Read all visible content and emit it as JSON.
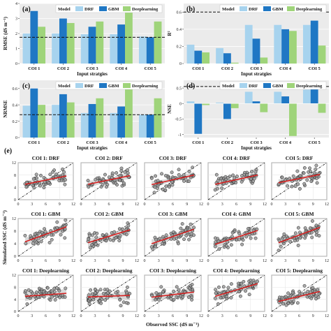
{
  "figure": {
    "chart_data": [
      {
        "panel": "(a)",
        "type": "bar",
        "categories": [
          "COI 1",
          "COI 2",
          "COI 3",
          "COI 4",
          "COI 5"
        ],
        "xlabel": "Input stratgies",
        "ylabel": "RMSE (dS m⁻¹)",
        "ylim": [
          0,
          4
        ],
        "yticks": [
          0,
          1,
          2,
          3,
          4
        ],
        "legend_title": "Model",
        "series": [
          {
            "name": "DRF",
            "color": "#a7d3ee",
            "values": [
              2.0,
              2.0,
              1.95,
              1.95,
              1.8
            ]
          },
          {
            "name": "GBM",
            "color": "#1f77c4",
            "values": [
              3.5,
              3.0,
              2.45,
              2.6,
              1.75
            ]
          },
          {
            "name": "Deeplearning",
            "color": "#9fd47a",
            "values": [
              2.45,
              2.7,
              2.8,
              3.65,
              2.8
            ]
          }
        ],
        "reference_line": 1.75,
        "legend_position": "top"
      },
      {
        "panel": "(b)",
        "type": "bar",
        "categories": [
          "COI 1",
          "COI 2",
          "COI 3",
          "COI 4",
          "COI 5"
        ],
        "xlabel": "Input stratgies",
        "ylabel": "R²",
        "ylim": [
          0,
          0.7
        ],
        "yticks": [
          0.0,
          0.2,
          0.4,
          0.6
        ],
        "legend_title": "Model",
        "series": [
          {
            "name": "DRF",
            "color": "#a7d3ee",
            "values": [
              0.22,
              0.18,
              0.45,
              0.45,
              0.45
            ]
          },
          {
            "name": "GBM",
            "color": "#1f77c4",
            "values": [
              0.15,
              0.12,
              0.29,
              0.4,
              0.5
            ]
          },
          {
            "name": "Deeplearning",
            "color": "#9fd47a",
            "values": [
              0.13,
              0.01,
              0.07,
              0.38,
              0.21
            ]
          }
        ],
        "reference_line": 0.6,
        "legend_position": "top"
      },
      {
        "panel": "(c)",
        "type": "bar",
        "categories": [
          "COI 1",
          "COI 2",
          "COI 3",
          "COI 4",
          "COI 5"
        ],
        "xlabel": "Input stratgies",
        "ylabel": "NRMSE",
        "ylim": [
          0,
          0.7
        ],
        "yticks": [
          0.0,
          0.2,
          0.4,
          0.6
        ],
        "legend_title": "Model",
        "series": [
          {
            "name": "DRF",
            "color": "#a7d3ee",
            "values": [
              0.39,
              0.4,
              0.3,
              0.3,
              0.28
            ]
          },
          {
            "name": "GBM",
            "color": "#1f77c4",
            "values": [
              0.6,
              0.53,
              0.41,
              0.38,
              0.28
            ]
          },
          {
            "name": "Deeplearning",
            "color": "#9fd47a",
            "values": [
              0.4,
              0.43,
              0.48,
              0.63,
              0.48
            ]
          }
        ],
        "reference_line": 0.28,
        "legend_position": "top"
      },
      {
        "panel": "(d)",
        "type": "bar",
        "categories": [
          "COI 1",
          "COI 2",
          "COI 3",
          "COI 4",
          "COI 5"
        ],
        "xlabel": "Input stratgies",
        "ylabel": "NSE",
        "ylim": [
          -1.1,
          0.75
        ],
        "yticks": [
          -1.0,
          -0.5,
          0.0,
          0.5
        ],
        "legend_title": "Model",
        "series": [
          {
            "name": "DRF",
            "color": "#a7d3ee",
            "values": [
              0.07,
              0.03,
              0.38,
              0.38,
              0.45
            ]
          },
          {
            "name": "GBM",
            "color": "#1f77c4",
            "values": [
              -0.98,
              -0.5,
              0.07,
              0.23,
              0.6
            ]
          },
          {
            "name": "Deeplearning",
            "color": "#9fd47a",
            "values": [
              -0.05,
              -0.15,
              -0.28,
              -1.05,
              -0.3
            ]
          }
        ],
        "reference_line": 0.55,
        "legend_position": "top"
      },
      {
        "panel": "(e)",
        "type": "scatter",
        "xlabel": "Observed SSC  (dS m⁻¹)",
        "ylabel": "Simulated SSC (dS m⁻¹)",
        "xlim": [
          0,
          12
        ],
        "ylim": [
          0,
          12
        ],
        "xticks": [
          0,
          3,
          6,
          9,
          12
        ],
        "yticks": [
          0,
          4,
          8,
          12
        ],
        "reference": "1:1 line",
        "grid": true,
        "rows": [
          {
            "model": "DRF",
            "panels": [
              {
                "title": "COI 1: DRF",
                "fit": [
                  [
                    1.5,
                    5.0
                  ],
                  [
                    10.5,
                    7.7
                  ]
                ]
              },
              {
                "title": "COI 2: DRF",
                "fit": [
                  [
                    1.5,
                    5.0
                  ],
                  [
                    10.5,
                    7.8
                  ]
                ]
              },
              {
                "title": "COI 3: DRF",
                "fit": [
                  [
                    1.5,
                    4.9
                  ],
                  [
                    10.5,
                    8.0
                  ]
                ]
              },
              {
                "title": "COI 4: DRF",
                "fit": [
                  [
                    1.5,
                    5.0
                  ],
                  [
                    10.5,
                    8.0
                  ]
                ]
              },
              {
                "title": "COI 5: DRF",
                "fit": [
                  [
                    1.5,
                    5.5
                  ],
                  [
                    10.5,
                    8.2
                  ]
                ]
              }
            ]
          },
          {
            "model": "GBM",
            "panels": [
              {
                "title": "COI 1: GBM",
                "fit": [
                  [
                    1.5,
                    4.6
                  ],
                  [
                    10.5,
                    9.4
                  ]
                ]
              },
              {
                "title": "COI 2: GBM",
                "fit": [
                  [
                    1.5,
                    4.3
                  ],
                  [
                    10.5,
                    8.4
                  ]
                ]
              },
              {
                "title": "COI 3: GBM",
                "fit": [
                  [
                    1.5,
                    4.0
                  ],
                  [
                    10.5,
                    8.6
                  ]
                ]
              },
              {
                "title": "COI 4: GBM",
                "fit": [
                  [
                    1.5,
                    3.8
                  ],
                  [
                    10.5,
                    8.2
                  ]
                ]
              },
              {
                "title": "COI 5: GBM",
                "fit": [
                  [
                    1.5,
                    4.3
                  ],
                  [
                    10.5,
                    9.2
                  ]
                ]
              }
            ]
          },
          {
            "model": "Deeplearning",
            "panels": [
              {
                "title": "COI 1: Deeplearning",
                "fit": [
                  [
                    1.5,
                    5.0
                  ],
                  [
                    10.5,
                    6.0
                  ]
                ]
              },
              {
                "title": "COI 2: Deeplearning",
                "fit": [
                  [
                    1.5,
                    4.8
                  ],
                  [
                    10.5,
                    5.3
                  ]
                ]
              },
              {
                "title": "COI 3: Deeplearning",
                "fit": [
                  [
                    1.5,
                    4.7
                  ],
                  [
                    10.5,
                    6.4
                  ]
                ]
              },
              {
                "title": "COI 4: Deeplearning",
                "fit": [
                  [
                    1.5,
                    5.0
                  ],
                  [
                    10.5,
                    9.2
                  ]
                ]
              },
              {
                "title": "COI 5: Deeplearning",
                "fit": [
                  [
                    1.5,
                    3.3
                  ],
                  [
                    10.5,
                    6.6
                  ]
                ]
              }
            ]
          }
        ]
      }
    ]
  }
}
